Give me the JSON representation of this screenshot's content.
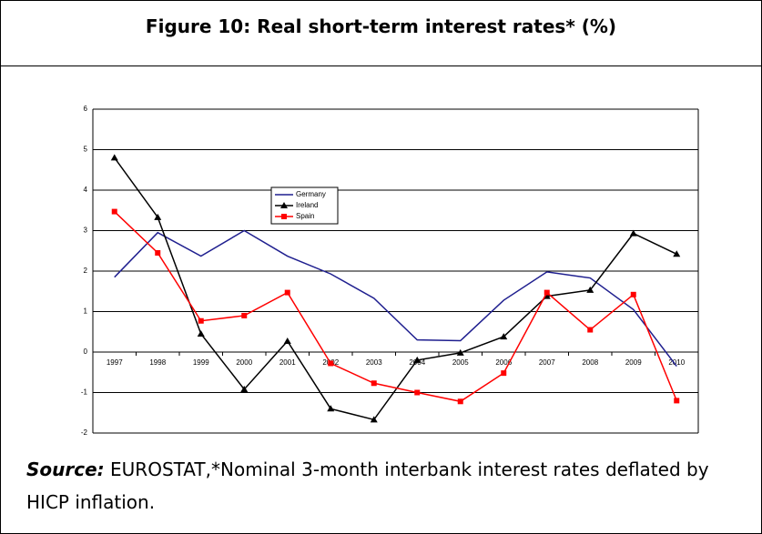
{
  "chart_data": {
    "type": "line",
    "title": "Figure 10: Real short-term interest rates* (%)",
    "categories": [
      "1997",
      "1998",
      "1999",
      "2000",
      "2001",
      "2002",
      "2003",
      "2004",
      "2005",
      "2006",
      "2007",
      "2008",
      "2009",
      "2010"
    ],
    "series": [
      {
        "name": "Germany",
        "color": "#1f1f8f",
        "marker": "none",
        "values": [
          1.85,
          2.95,
          2.37,
          3.0,
          2.37,
          1.93,
          1.33,
          0.3,
          0.28,
          1.28,
          1.98,
          1.83,
          1.05,
          -0.35
        ]
      },
      {
        "name": "Ireland",
        "color": "#000000",
        "marker": "triangle",
        "values": [
          4.8,
          3.33,
          0.45,
          -0.92,
          0.27,
          -1.4,
          -1.67,
          -0.2,
          -0.02,
          0.38,
          1.38,
          1.53,
          2.93,
          2.42
        ]
      },
      {
        "name": "Spain",
        "color": "#ff0000",
        "marker": "square",
        "values": [
          3.47,
          2.45,
          0.77,
          0.9,
          1.47,
          -0.28,
          -0.77,
          -1.0,
          -1.22,
          -0.52,
          1.47,
          0.55,
          1.42,
          -1.2
        ]
      }
    ],
    "ylim": [
      -2,
      6
    ],
    "yticks": [
      -2,
      -1,
      0,
      1,
      2,
      3,
      4,
      5,
      6
    ],
    "grid": true,
    "source_label": "Source:",
    "source_text": "EUROSTAT,*Nominal 3-month interbank interest rates deflated by HICP inflation."
  }
}
